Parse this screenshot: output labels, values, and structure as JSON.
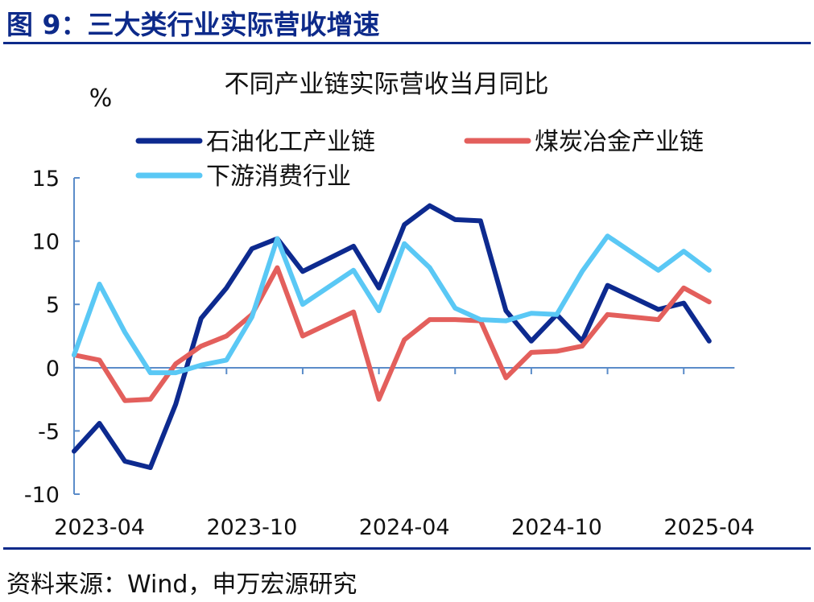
{
  "figure_title": "图 9：三大类行业实际营收增速",
  "source": "资料来源：Wind，申万宏源研究",
  "chart_data": {
    "type": "line",
    "title": "不同产业链实际营收当月同比",
    "ylabel": "%",
    "xlabel": "",
    "ylim": [
      -10,
      15
    ],
    "yticks": [
      -10,
      -5,
      0,
      5,
      10,
      15
    ],
    "x_tick_labels": [
      "2023-04",
      "2023-10",
      "2024-04",
      "2024-10",
      "2025-04"
    ],
    "x": [
      "2023-03",
      "2023-04",
      "2023-05",
      "2023-06",
      "2023-07",
      "2023-08",
      "2023-09",
      "2023-10",
      "2023-11",
      "2023-12",
      "2024-01",
      "2024-02",
      "2024-03",
      "2024-04",
      "2024-05",
      "2024-06",
      "2024-07",
      "2024-08",
      "2024-09",
      "2024-10",
      "2024-11",
      "2024-12",
      "2025-01",
      "2025-02",
      "2025-03",
      "2025-04",
      "2025-05"
    ],
    "grid": false,
    "legend_position": "top",
    "series": [
      {
        "name": "石油化工产业链",
        "color": "#0d2a8f",
        "values": [
          -6.6,
          -4.4,
          -7.4,
          -7.9,
          -2.9,
          3.9,
          6.3,
          9.4,
          10.2,
          7.6,
          null,
          9.6,
          6.3,
          11.3,
          12.8,
          11.7,
          11.6,
          4.5,
          2.1,
          4.2,
          2.1,
          6.5,
          null,
          4.6,
          5.1,
          2.1,
          null
        ]
      },
      {
        "name": "煤炭冶金产业链",
        "color": "#e35f5c",
        "values": [
          1.0,
          0.6,
          -2.6,
          -2.5,
          0.3,
          1.7,
          2.5,
          4.2,
          7.9,
          2.5,
          null,
          4.4,
          -2.5,
          2.2,
          3.8,
          3.8,
          3.7,
          -0.8,
          1.2,
          1.3,
          1.7,
          4.2,
          null,
          3.8,
          6.3,
          5.2,
          null
        ]
      },
      {
        "name": "下游消费行业",
        "color": "#5ac8f5",
        "values": [
          1.0,
          6.6,
          2.8,
          -0.4,
          -0.4,
          0.2,
          0.6,
          4.0,
          10.2,
          5.0,
          null,
          7.7,
          4.5,
          9.8,
          7.9,
          4.7,
          3.8,
          3.7,
          4.3,
          4.2,
          7.6,
          10.4,
          null,
          7.7,
          9.2,
          7.7,
          null
        ]
      }
    ]
  }
}
